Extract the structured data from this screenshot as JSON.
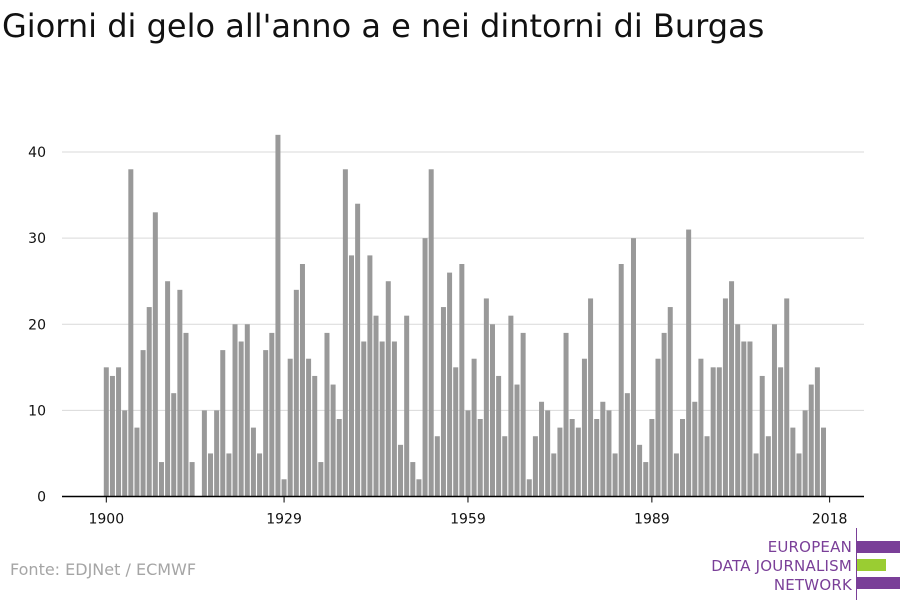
{
  "title": "Giorni di gelo all'anno a e nei dintorni di Burgas",
  "source": "Fonte: EDJNet / ECMWF",
  "logo": {
    "line1": "EUROPEAN",
    "line2": "DATA JOURNALISM",
    "line3": "NETWORK",
    "colors": {
      "purple": "#7a3f98",
      "green": "#9acd32"
    }
  },
  "colors": {
    "bar": "#999999",
    "grid": "#d9d9d9",
    "axis": "#000000",
    "text": "#111111"
  },
  "chart_data": {
    "type": "bar",
    "title": "Giorni di gelo all'anno a e nei dintorni di Burgas",
    "xlabel": "",
    "ylabel": "",
    "ylim": [
      0,
      45
    ],
    "y_ticks": [
      0,
      10,
      20,
      30,
      40
    ],
    "x_ticks": [
      1900,
      1929,
      1959,
      1989,
      2018
    ],
    "grid": true,
    "x": [
      1900,
      1901,
      1902,
      1903,
      1904,
      1905,
      1906,
      1907,
      1908,
      1909,
      1910,
      1911,
      1912,
      1913,
      1914,
      1915,
      1916,
      1917,
      1918,
      1919,
      1920,
      1921,
      1922,
      1923,
      1924,
      1925,
      1926,
      1927,
      1928,
      1929,
      1930,
      1931,
      1932,
      1933,
      1934,
      1935,
      1936,
      1937,
      1938,
      1939,
      1940,
      1941,
      1942,
      1943,
      1944,
      1945,
      1946,
      1947,
      1948,
      1949,
      1950,
      1951,
      1952,
      1953,
      1954,
      1955,
      1956,
      1957,
      1958,
      1959,
      1960,
      1961,
      1962,
      1963,
      1964,
      1965,
      1966,
      1967,
      1968,
      1969,
      1970,
      1971,
      1972,
      1973,
      1974,
      1975,
      1976,
      1977,
      1978,
      1979,
      1980,
      1981,
      1982,
      1983,
      1984,
      1985,
      1986,
      1987,
      1988,
      1989,
      1990,
      1991,
      1992,
      1993,
      1994,
      1995,
      1996,
      1997,
      1998,
      1999,
      2000,
      2001,
      2002,
      2003,
      2004,
      2005,
      2006,
      2007,
      2008,
      2009,
      2010,
      2011,
      2012,
      2013,
      2014,
      2015,
      2016,
      2017,
      2018
    ],
    "values": [
      15,
      14,
      15,
      10,
      38,
      8,
      17,
      22,
      33,
      4,
      25,
      12,
      24,
      19,
      4,
      0,
      10,
      5,
      10,
      17,
      5,
      20,
      18,
      20,
      8,
      5,
      17,
      19,
      42,
      2,
      16,
      24,
      27,
      16,
      14,
      4,
      19,
      13,
      9,
      38,
      28,
      34,
      18,
      28,
      21,
      18,
      25,
      18,
      6,
      21,
      4,
      2,
      30,
      38,
      7,
      22,
      26,
      15,
      27,
      10,
      16,
      9,
      23,
      20,
      14,
      7,
      21,
      13,
      19,
      2,
      7,
      11,
      10,
      5,
      8,
      19,
      9,
      8,
      16,
      23,
      9,
      11,
      10,
      5,
      27,
      12,
      30,
      6,
      4,
      9,
      16,
      19,
      22,
      5,
      9,
      31,
      11,
      16,
      7,
      15,
      15,
      23,
      25,
      20,
      18,
      18,
      5,
      14,
      7,
      20,
      15,
      23,
      8,
      5,
      10,
      13,
      15,
      8,
      0
    ]
  }
}
